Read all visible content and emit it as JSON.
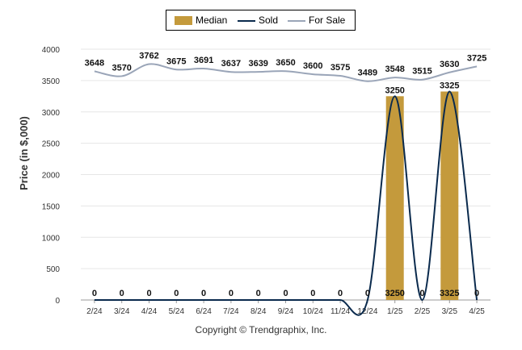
{
  "chart_data": {
    "type": "bar+line",
    "categories": [
      "2/24",
      "3/24",
      "4/24",
      "5/24",
      "6/24",
      "7/24",
      "8/24",
      "9/24",
      "10/24",
      "11/24",
      "12/24",
      "1/25",
      "2/25",
      "3/25",
      "4/25"
    ],
    "series": [
      {
        "name": "Median",
        "type": "bar",
        "color": "#C49A3C",
        "values": [
          0,
          0,
          0,
          0,
          0,
          0,
          0,
          0,
          0,
          0,
          0,
          3250,
          0,
          3325,
          0
        ]
      },
      {
        "name": "Sold",
        "type": "line",
        "color": "#0A2A4D",
        "values": [
          0,
          0,
          0,
          0,
          0,
          0,
          0,
          0,
          0,
          0,
          0,
          3250,
          0,
          3325,
          0
        ]
      },
      {
        "name": "For Sale",
        "type": "line",
        "color": "#9AA5B8",
        "values": [
          3648,
          3570,
          3762,
          3675,
          3691,
          3637,
          3639,
          3650,
          3600,
          3575,
          3489,
          3548,
          3515,
          3630,
          3725
        ]
      }
    ],
    "ylabel": "Price (in $,000)",
    "ylim": [
      0,
      4000
    ],
    "yticks": [
      0,
      500,
      1000,
      1500,
      2000,
      2500,
      3000,
      3500,
      4000
    ],
    "grid": true,
    "legend_position": "top-center"
  },
  "legend": {
    "median_label": "Median",
    "sold_label": "Sold",
    "for_sale_label": "For Sale"
  },
  "footer": "Copyright © Trendgraphix, Inc.",
  "colors": {
    "median": "#C49A3C",
    "sold": "#0A2A4D",
    "for_sale": "#9AA5B8",
    "grid": "#E6E6E6"
  }
}
